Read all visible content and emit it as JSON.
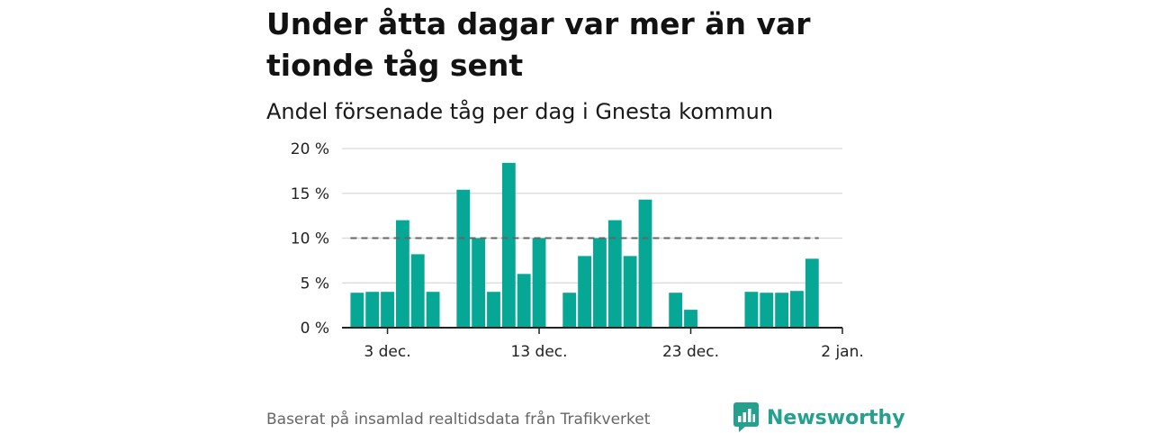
{
  "header": {
    "title": "Under åtta dagar var mer än var tionde tåg sent",
    "subtitle": "Andel försenade tåg per dag i Gnesta kommun"
  },
  "footer": {
    "source": "Baserat på insamlad realtidsdata från Trafikverket",
    "brand": "Newsworthy"
  },
  "colors": {
    "bar": "#07a796",
    "reference_line": "#666666",
    "grid": "#d9d9d9",
    "brand": "#23a08e"
  },
  "chart_data": {
    "type": "bar",
    "title": "Andel försenade tåg per dag i Gnesta kommun",
    "x_axis": {
      "tick_labels": [
        {
          "date": "2023-12-03",
          "label": "3 dec."
        },
        {
          "date": "2023-12-13",
          "label": "13 dec."
        },
        {
          "date": "2023-12-23",
          "label": "23 dec."
        },
        {
          "date": "2024-01-02",
          "label": "2 jan."
        }
      ],
      "range": [
        "2023-11-30",
        "2024-01-02"
      ]
    },
    "y_axis": {
      "range": [
        0,
        20
      ],
      "unit": "%",
      "ticks": [
        {
          "value": 0,
          "label": "0 %"
        },
        {
          "value": 5,
          "label": "5 %"
        },
        {
          "value": 10,
          "label": "10 %"
        },
        {
          "value": 15,
          "label": "15 %"
        },
        {
          "value": 20,
          "label": "20 %"
        }
      ]
    },
    "grid": true,
    "reference_line": {
      "value": 10,
      "style": "dashed"
    },
    "points": [
      {
        "date": "2023-12-01",
        "value": 3.9
      },
      {
        "date": "2023-12-02",
        "value": 4.0
      },
      {
        "date": "2023-12-03",
        "value": 4.0
      },
      {
        "date": "2023-12-04",
        "value": 12.0
      },
      {
        "date": "2023-12-05",
        "value": 8.2
      },
      {
        "date": "2023-12-06",
        "value": 4.0
      },
      {
        "date": "2023-12-08",
        "value": 15.4
      },
      {
        "date": "2023-12-09",
        "value": 10.0
      },
      {
        "date": "2023-12-10",
        "value": 4.0
      },
      {
        "date": "2023-12-11",
        "value": 18.4
      },
      {
        "date": "2023-12-12",
        "value": 6.0
      },
      {
        "date": "2023-12-13",
        "value": 10.0
      },
      {
        "date": "2023-12-15",
        "value": 3.9
      },
      {
        "date": "2023-12-16",
        "value": 8.0
      },
      {
        "date": "2023-12-17",
        "value": 10.0
      },
      {
        "date": "2023-12-18",
        "value": 12.0
      },
      {
        "date": "2023-12-19",
        "value": 8.0
      },
      {
        "date": "2023-12-20",
        "value": 14.3
      },
      {
        "date": "2023-12-22",
        "value": 3.9
      },
      {
        "date": "2023-12-23",
        "value": 2.0
      },
      {
        "date": "2023-12-27",
        "value": 4.0
      },
      {
        "date": "2023-12-28",
        "value": 3.9
      },
      {
        "date": "2023-12-29",
        "value": 3.9
      },
      {
        "date": "2023-12-30",
        "value": 4.1
      },
      {
        "date": "2023-12-31",
        "value": 7.7
      }
    ]
  }
}
